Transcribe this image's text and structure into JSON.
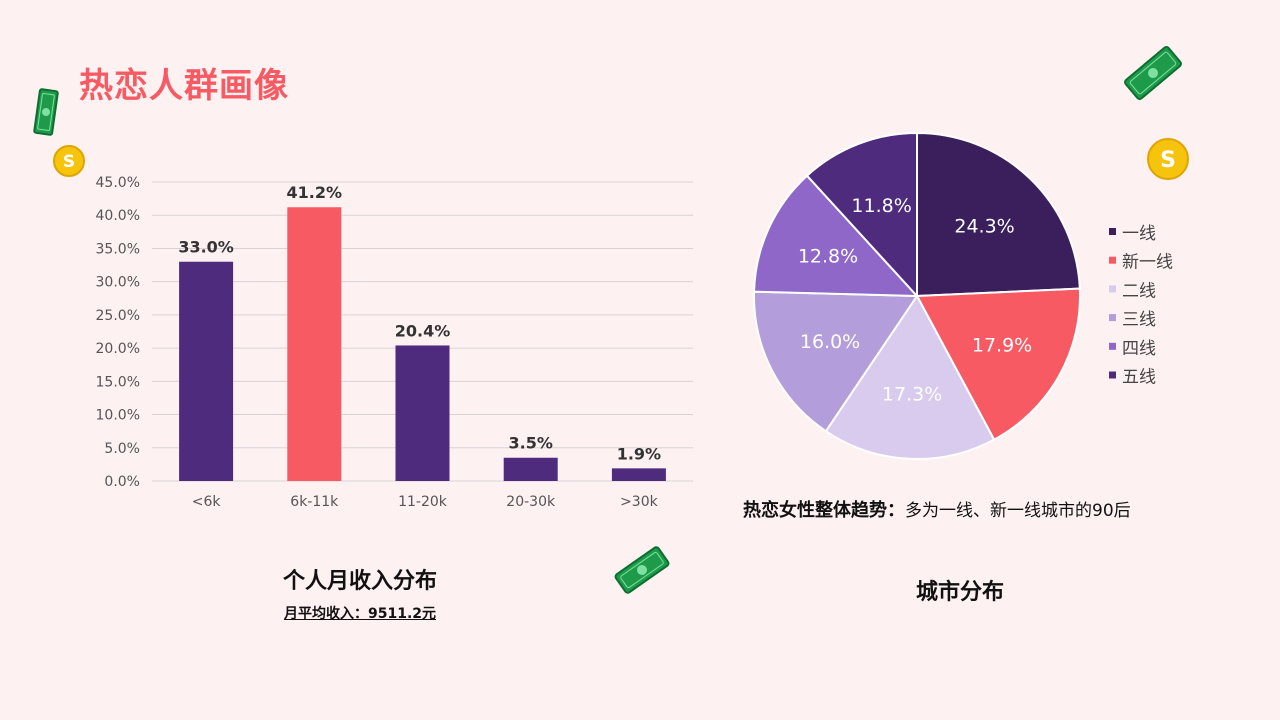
{
  "page": {
    "title": "热恋人群画像",
    "trend_label": "热恋女性整体趋势：",
    "trend_text": "多为一线、新一线城市的90后"
  },
  "colors": {
    "dark_purple": "#4e2b7d",
    "coral": "#f75a63",
    "background": "#fdf1f2",
    "pie": [
      "#3b1f5c",
      "#f75a63",
      "#d9cbee",
      "#b39ddb",
      "#8e67c8",
      "#4e2b7d"
    ]
  },
  "chart_data": [
    {
      "type": "bar",
      "title": "个人月收入分布",
      "subtitle": "月平均收入：9511.2元",
      "categories": [
        "<6k",
        "6k-11k",
        "11-20k",
        "20-30k",
        ">30k"
      ],
      "values": [
        33.0,
        41.2,
        20.4,
        3.5,
        1.9
      ],
      "value_labels": [
        "33.0%",
        "41.2%",
        "20.4%",
        "3.5%",
        "1.9%"
      ],
      "yticks": [
        "0.0%",
        "5.0%",
        "10.0%",
        "15.0%",
        "20.0%",
        "25.0%",
        "30.0%",
        "35.0%",
        "40.0%",
        "45.0%"
      ],
      "ylim": [
        0,
        45
      ],
      "grid": true,
      "highlight_index": 1,
      "xlabel": "",
      "ylabel": ""
    },
    {
      "type": "pie",
      "title": "城市分布",
      "labels": [
        "一线",
        "新一线",
        "二线",
        "三线",
        "四线",
        "五线"
      ],
      "values": [
        24.3,
        17.9,
        17.3,
        16.0,
        12.8,
        11.8
      ],
      "value_labels": [
        "24.3%",
        "17.9%",
        "17.3%",
        "16.0%",
        "12.8%",
        "11.8%"
      ],
      "legend": "right"
    }
  ],
  "decorations": {
    "icons": [
      "money-bill-icon",
      "coin-icon"
    ]
  }
}
